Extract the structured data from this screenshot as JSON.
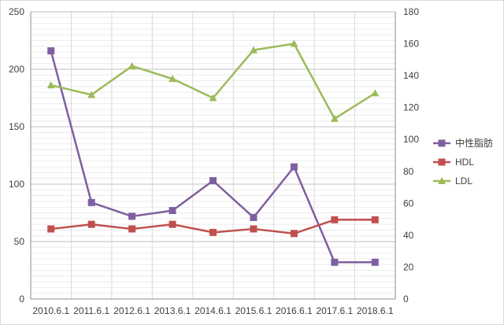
{
  "chart_data": {
    "type": "line",
    "categories": [
      "2010.6.1",
      "2011.6.1",
      "2012.6.1",
      "2013.6.1",
      "2014.6.1",
      "2015.6.1",
      "2016.6.1",
      "2017.6.1",
      "2018.6.1"
    ],
    "series": [
      {
        "name": "中性脂肪",
        "axis": "left",
        "color": "#7f5fa0",
        "marker": "square",
        "values": [
          216,
          84,
          72,
          77,
          103,
          71,
          115,
          32,
          32
        ]
      },
      {
        "name": "HDL",
        "axis": "left",
        "color": "#c0504d",
        "marker": "square",
        "values": [
          61,
          65,
          61,
          65,
          58,
          61,
          57,
          69,
          69
        ]
      },
      {
        "name": "LDL",
        "axis": "right",
        "color": "#9bbb59",
        "marker": "triangle",
        "values": [
          134,
          128,
          146,
          138,
          126,
          156,
          160,
          113,
          129
        ]
      }
    ],
    "y_left": {
      "min": 0,
      "max": 250,
      "major": 50,
      "ticks": [
        "0",
        "50",
        "100",
        "150",
        "200",
        "250"
      ]
    },
    "y_right": {
      "min": 0,
      "max": 180,
      "major": 20,
      "ticks": [
        "0",
        "20",
        "40",
        "60",
        "80",
        "100",
        "120",
        "140",
        "160",
        "180"
      ]
    },
    "title": "",
    "xlabel": "",
    "ylabel": "",
    "grid": "on",
    "legend_position": "right"
  }
}
